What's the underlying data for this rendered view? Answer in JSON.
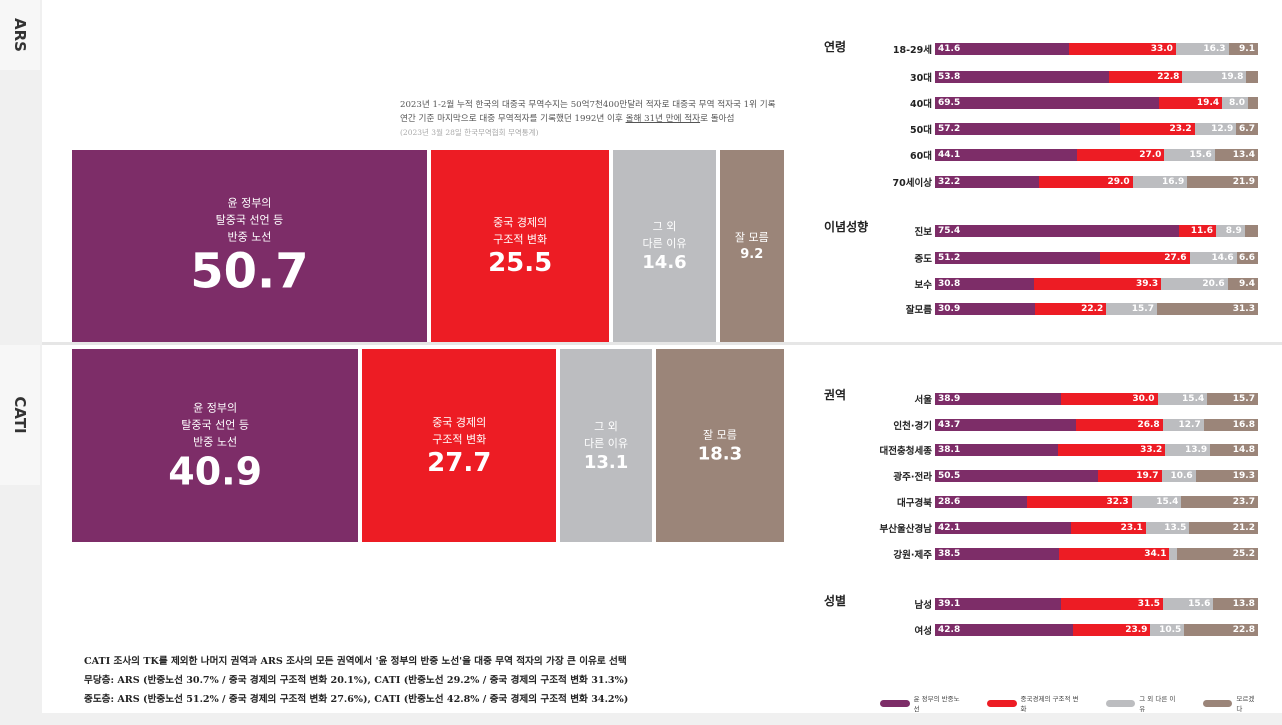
{
  "tabs": {
    "ars": "ARS",
    "cati": "CATI"
  },
  "colors": {
    "purple": "#7d2d68",
    "red": "#ed1c24",
    "gray": "#bcbdc0",
    "brown": "#9b8579"
  },
  "note": {
    "line1": "2023년 1-2월 누적 한국의 대중국 무역수지는 50억7천400만달러 적자로 대중국 무역 적자국 1위 기록",
    "line2_pre": "연간 기준 마지막으로 대중 무역적자를 기록했던 1992년 이후 ",
    "line2_u": "올해 31년 만에 적자",
    "line2_post": "로 돌아섬",
    "source": "(2023년 3월 28일 한국무역협회 무역통계)"
  },
  "chart_data": [
    {
      "type": "bar",
      "name": "ARS",
      "categories": [
        "윤 정부의 탈중국 선언 등 반중 노선",
        "중국 경제의 구조적 변화",
        "그 외 다른 이유",
        "잘 모름"
      ],
      "values": [
        50.7,
        25.5,
        14.6,
        9.2
      ],
      "labels": [
        [
          "윤 정부의",
          "탈중국 선언 등",
          "반중 노선"
        ],
        [
          "중국 경제의",
          "구조적 변화"
        ],
        [
          "그 외",
          "다른 이유"
        ],
        [
          "잘 모름"
        ]
      ]
    },
    {
      "type": "bar",
      "name": "CATI",
      "categories": [
        "윤 정부의 탈중국 선언 등 반중 노선",
        "중국 경제의 구조적 변화",
        "그 외 다른 이유",
        "잘 모름"
      ],
      "values": [
        40.9,
        27.7,
        13.1,
        18.3
      ],
      "labels": [
        [
          "윤 정부의",
          "탈중국 선언 등",
          "반중 노선"
        ],
        [
          "중국 경제의",
          "구조적 변화"
        ],
        [
          "그 외",
          "다른 이유"
        ],
        [
          "잘 모름"
        ]
      ]
    },
    {
      "type": "bar",
      "stacked": true,
      "series_names": [
        "윤 정부의 반중노선",
        "중국경제의 구조적 변화",
        "그 외 다른 이유",
        "모르겠다"
      ],
      "groups": [
        {
          "name": "연령",
          "rows": [
            {
              "label": "18-29세",
              "values": [
                41.6,
                33.0,
                16.3,
                9.1
              ]
            },
            {
              "label": "30대",
              "values": [
                53.8,
                22.8,
                19.8,
                3.6
              ]
            },
            {
              "label": "40대",
              "values": [
                69.5,
                19.4,
                8.0,
                3.1
              ]
            },
            {
              "label": "50대",
              "values": [
                57.2,
                23.2,
                12.9,
                6.7
              ]
            },
            {
              "label": "60대",
              "values": [
                44.1,
                27.0,
                15.6,
                13.4
              ]
            },
            {
              "label": "70세이상",
              "values": [
                32.2,
                29.0,
                16.9,
                21.9
              ]
            }
          ]
        },
        {
          "name": "이념성향",
          "rows": [
            {
              "label": "진보",
              "values": [
                75.4,
                11.6,
                8.9,
                4.1
              ]
            },
            {
              "label": "중도",
              "values": [
                51.2,
                27.6,
                14.6,
                6.6
              ]
            },
            {
              "label": "보수",
              "values": [
                30.8,
                39.3,
                20.6,
                9.4
              ]
            },
            {
              "label": "잘모름",
              "values": [
                30.9,
                22.2,
                15.7,
                31.3
              ]
            }
          ]
        },
        {
          "name": "권역",
          "rows": [
            {
              "label": "서울",
              "values": [
                38.9,
                30.0,
                15.4,
                15.7
              ]
            },
            {
              "label": "인천·경기",
              "values": [
                43.7,
                26.8,
                12.7,
                16.8
              ]
            },
            {
              "label": "대전충청세종",
              "values": [
                38.1,
                33.2,
                13.9,
                14.8
              ]
            },
            {
              "label": "광주·전라",
              "values": [
                50.5,
                19.7,
                10.6,
                19.3
              ]
            },
            {
              "label": "대구경북",
              "values": [
                28.6,
                32.3,
                15.4,
                23.7
              ]
            },
            {
              "label": "부산울산경남",
              "values": [
                42.1,
                23.1,
                13.5,
                21.2
              ]
            },
            {
              "label": "강원·제주",
              "values": [
                38.5,
                34.1,
                2.2,
                25.2
              ]
            }
          ]
        },
        {
          "name": "성별",
          "rows": [
            {
              "label": "남성",
              "values": [
                39.1,
                31.5,
                15.6,
                13.8
              ]
            },
            {
              "label": "여성",
              "values": [
                42.8,
                23.9,
                10.5,
                22.8
              ]
            }
          ]
        }
      ],
      "hidden_value_labels": [
        "30대:3",
        "40대:3",
        "진보:3",
        "강원·제주:2"
      ]
    }
  ],
  "legend": [
    "윤 정부의 반중노선",
    "중국경제의 구조적 변화",
    "그 외 다른 이유",
    "모르겠다"
  ],
  "footer": {
    "line1": "CATI 조사의 TK를 제외한 나머지 권역과 ARS 조사의 모든 권역에서 '윤 정부의 반중 노선'을 대중 무역 적자의 가장 큰 이유로 선택",
    "line2": "무당층: ARS (반중노선 30.7% / 중국 경제의 구조적 변화 20.1%), CATI (반중노선 29.2% / 중국 경제의 구조적 변화 31.3%)",
    "line3": "중도층: ARS (반중노선 51.2% / 중국 경제의 구조적 변화 27.6%), CATI (반중노선 42.8% / 중국 경제의 구조적 변화 34.2%)"
  }
}
